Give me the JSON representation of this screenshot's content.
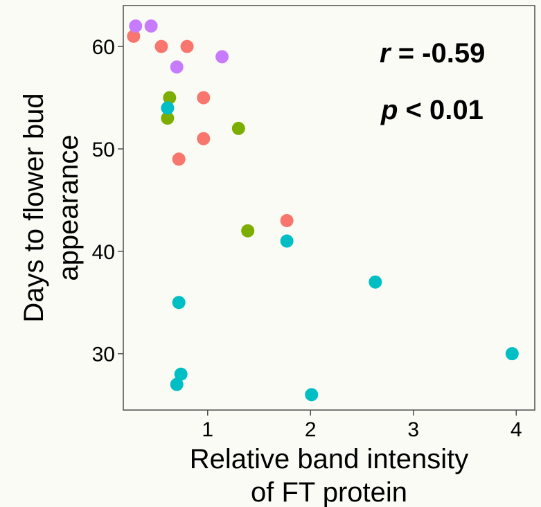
{
  "chart_data": {
    "type": "scatter",
    "xlabel": [
      "Relative band intensity",
      "of FT protein"
    ],
    "ylabel": [
      "Days to flower bud",
      "appearance"
    ],
    "xlim": [
      0.18,
      4.18
    ],
    "ylim": [
      24.5,
      64
    ],
    "x_ticks": [
      1,
      2,
      3,
      4
    ],
    "y_ticks": [
      30,
      40,
      50,
      60
    ],
    "grid": false,
    "legend": "none",
    "annotations": {
      "r_symbol": "r",
      "r_value": " = -0.59",
      "p_symbol": "p",
      "p_value": " < 0.01"
    },
    "series": [
      {
        "color": "#f8766d",
        "points": [
          [
            0.28,
            61
          ],
          [
            0.55,
            60
          ],
          [
            0.8,
            60
          ],
          [
            0.96,
            55
          ],
          [
            0.96,
            51
          ],
          [
            0.72,
            49
          ],
          [
            1.77,
            43
          ]
        ]
      },
      {
        "color": "#c77cff",
        "points": [
          [
            0.3,
            62
          ],
          [
            0.45,
            62
          ],
          [
            1.14,
            59
          ],
          [
            0.7,
            58
          ]
        ]
      },
      {
        "color": "#7cae00",
        "points": [
          [
            0.63,
            55
          ],
          [
            0.61,
            53
          ],
          [
            1.3,
            52
          ],
          [
            1.39,
            42
          ]
        ]
      },
      {
        "color": "#00bfc4",
        "points": [
          [
            0.61,
            54
          ],
          [
            1.77,
            41
          ],
          [
            2.63,
            37
          ],
          [
            0.72,
            35
          ],
          [
            3.96,
            30
          ],
          [
            0.74,
            28
          ],
          [
            0.7,
            27
          ],
          [
            2.01,
            26
          ]
        ]
      }
    ]
  }
}
